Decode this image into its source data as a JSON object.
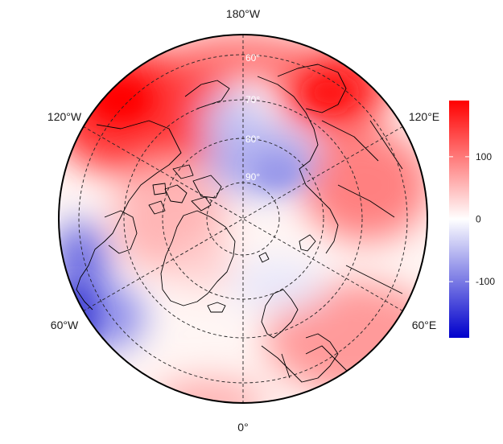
{
  "map": {
    "projection": "north-polar-stereographic",
    "longitude_labels": [
      {
        "key": "lon-180w",
        "text": "180°W"
      },
      {
        "key": "lon-120w",
        "text": "120°W"
      },
      {
        "key": "lon-120e",
        "text": "120°E"
      },
      {
        "key": "lon-60w",
        "text": "60°W"
      },
      {
        "key": "lon-60e",
        "text": "60°E"
      },
      {
        "key": "lon-0",
        "text": "0°"
      }
    ],
    "latitude_labels": [
      {
        "key": "lat-60",
        "text": "60°"
      },
      {
        "key": "lat-70",
        "text": "70°"
      },
      {
        "key": "lat-80",
        "text": "80°"
      },
      {
        "key": "lat-90",
        "text": "90°"
      }
    ],
    "field_pattern": "positive anomalies (red) over Alaska/Beaufort, Chukotka, Eurasia and mid-latitudes; negative anomalies (blue) over the Arctic Ocean near the pole and over eastern North America / Labrador"
  },
  "colorbar": {
    "colors": {
      "low": "#0000CC",
      "mid": "#FFFFFF",
      "high": "#FF0000"
    },
    "range": [
      -190,
      190
    ],
    "ticks": [
      {
        "value": 100,
        "label": "100"
      },
      {
        "value": 0,
        "label": "0"
      },
      {
        "value": -100,
        "label": "-100"
      }
    ]
  }
}
